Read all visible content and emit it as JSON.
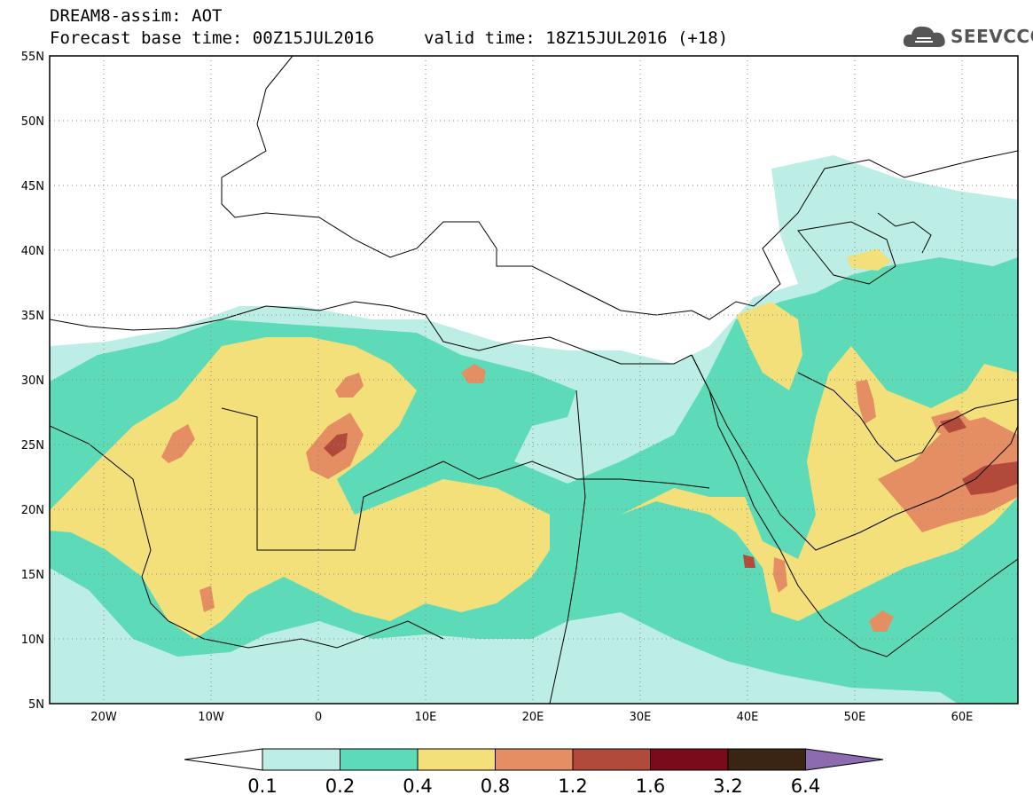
{
  "header": {
    "line1": "DREAM8-assim: AOT",
    "line2": "Forecast base time: 00Z15JUL2016",
    "valid": "valid time: 18Z15JUL2016 (+18)",
    "logo_text": "SEEVCCC"
  },
  "map": {
    "lat_labels": [
      "55N",
      "50N",
      "45N",
      "40N",
      "35N",
      "30N",
      "25N",
      "20N",
      "15N",
      "10N",
      "5N"
    ],
    "lon_labels": [
      "20W",
      "10W",
      "0",
      "10E",
      "20E",
      "30E",
      "40E",
      "50E",
      "60E"
    ],
    "colors": {
      "c01": "#bdeee6",
      "c02": "#5ddbb8",
      "c04": "#f3e07a",
      "c08": "#e58e64",
      "c12": "#b14a3a",
      "c16": "#7a0b1a",
      "c32": "#3a2414",
      "c64": "#8c6bb0"
    }
  },
  "colorbar": {
    "labels": [
      "0.1",
      "0.2",
      "0.4",
      "0.8",
      "1.2",
      "1.6",
      "3.2",
      "6.4"
    ],
    "colors": [
      "#bdeee6",
      "#5ddbb8",
      "#f3e07a",
      "#e58e64",
      "#b14a3a",
      "#7a0b1a",
      "#3a2414"
    ],
    "over_color": "#8c6bb0"
  }
}
